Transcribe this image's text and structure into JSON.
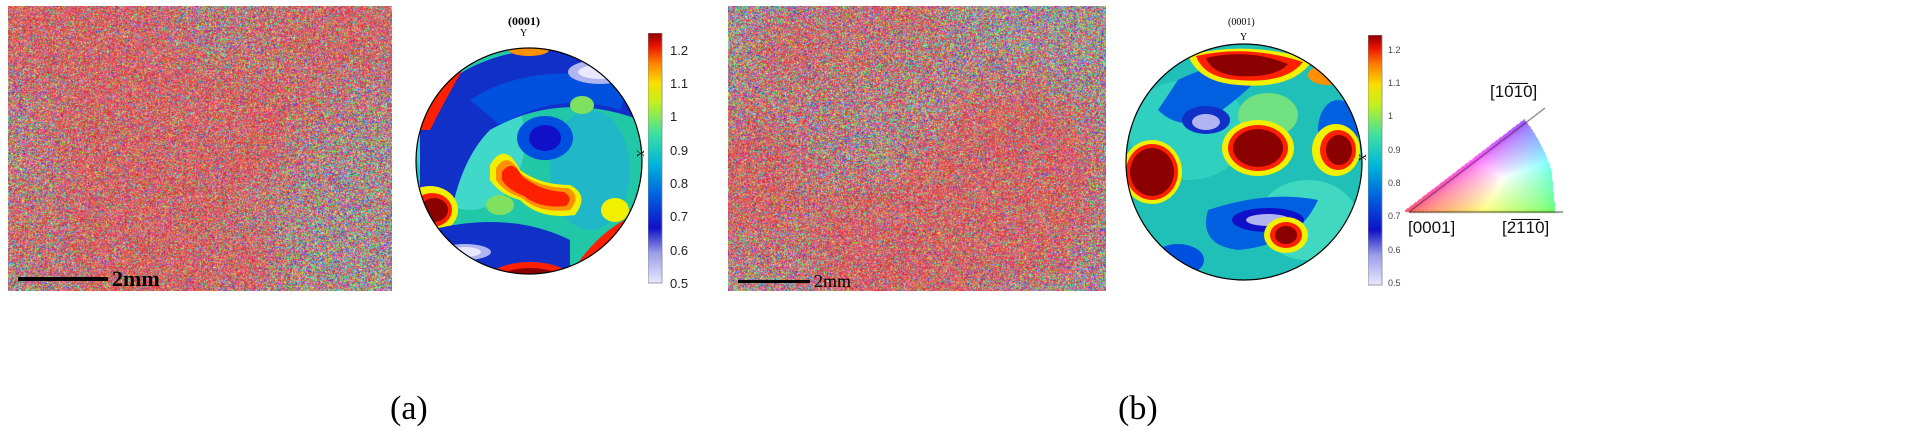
{
  "panels": [
    {
      "id": "a",
      "label": "(a)",
      "scale_bar": "2mm",
      "pole_figure": {
        "top_label": "(0001)",
        "y_axis": "Y",
        "x_axis": "X"
      },
      "colorbar": {
        "min": 0.5,
        "max": 1.25,
        "ticks": [
          "1.2",
          "1.1",
          "1",
          "0.9",
          "0.8",
          "0.7",
          "0.6",
          "0.5"
        ]
      }
    },
    {
      "id": "b",
      "label": "(b)",
      "scale_bar": "2mm",
      "pole_figure": {
        "top_label": "(0001)",
        "y_axis": "Y",
        "x_axis": "X"
      },
      "colorbar": {
        "min": 0.5,
        "max": 1.25,
        "ticks": [
          "1.2",
          "1.1",
          "1",
          "0.9",
          "0.8",
          "0.7",
          "0.6",
          "0.5"
        ]
      }
    }
  ],
  "ipf_key": {
    "labels": {
      "corner_basal": "[0001]",
      "corner_prism_top": "[10̅1̅0]",
      "corner_prism_bottom": "[2̅1̅1̅0]"
    }
  },
  "colors": {
    "jet": [
      "#e8e8ff",
      "#b0b4f0",
      "#1010c8",
      "#0050e0",
      "#00a8e0",
      "#20d0a0",
      "#80e060",
      "#f0f000",
      "#ff9000",
      "#ff2000",
      "#8b0000"
    ]
  }
}
